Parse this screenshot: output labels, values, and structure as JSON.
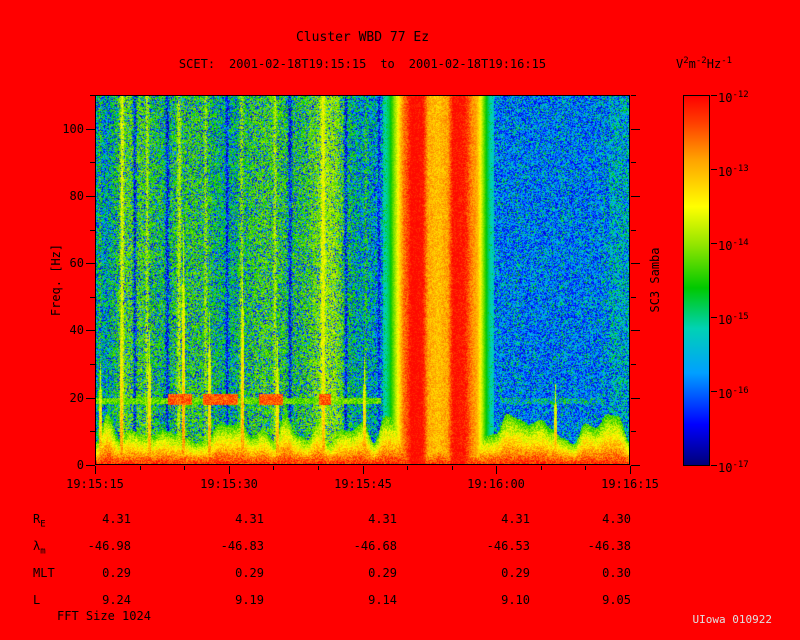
{
  "header": {
    "title": "Cluster WBD 77 Ez",
    "scet_label": "SCET:",
    "start_time": "2001-02-18T19:15:15",
    "to_label": "to",
    "end_time": "2001-02-18T19:16:15"
  },
  "axes": {
    "y_label": "Freq. [Hz]",
    "right_label": "SC3 Samba"
  },
  "colorbar": {
    "unit": {
      "base1": "V",
      "exp1": "2",
      "base2": "m",
      "exp2": "-2",
      "base3": "Hz",
      "exp3": "-1"
    },
    "ticks": [
      {
        "base": "10",
        "exp": "-12"
      },
      {
        "base": "10",
        "exp": "-13"
      },
      {
        "base": "10",
        "exp": "-14"
      },
      {
        "base": "10",
        "exp": "-15"
      },
      {
        "base": "10",
        "exp": "-16"
      },
      {
        "base": "10",
        "exp": "-17"
      }
    ]
  },
  "ephemeris": {
    "rows": [
      {
        "label": "R",
        "sub": "E",
        "values": [
          "4.31",
          "4.31",
          "4.31",
          "4.31",
          "4.30"
        ]
      },
      {
        "label": "λ",
        "sub": "m",
        "values": [
          "-46.98",
          "-46.83",
          "-46.68",
          "-46.53",
          "-46.38"
        ]
      },
      {
        "label": "MLT",
        "sub": "",
        "values": [
          "0.29",
          "0.29",
          "0.29",
          "0.29",
          "0.30"
        ]
      },
      {
        "label": "L",
        "sub": "",
        "values": [
          "9.24",
          "9.19",
          "9.14",
          "9.10",
          "9.05"
        ]
      }
    ]
  },
  "footer": {
    "fft_label": "FFT Size 1024",
    "credit": "UIowa 010922"
  },
  "chart_data": {
    "type": "heatmap",
    "title": "Cluster WBD 77 Ez",
    "xlabel": "",
    "ylabel": "Freq. [Hz]",
    "x_ticks": [
      "19:15:15",
      "19:15:30",
      "19:15:45",
      "19:16:00",
      "19:16:15"
    ],
    "x_range_seconds": [
      0,
      60
    ],
    "y_ticks_khz": [
      0,
      20,
      40,
      60,
      80,
      100
    ],
    "ylim_khz": [
      0,
      110
    ],
    "z_unit": "V^2 m^-2 Hz^-1",
    "z_range": [
      1e-17,
      1e-12
    ],
    "colorbar_exponents": [
      -12,
      -13,
      -14,
      -15,
      -16,
      -17
    ],
    "spacecraft": "SC3 Samba",
    "features": [
      {
        "name": "broadband-burst",
        "t_start_s": 34,
        "t_end_s": 43,
        "freq_khz": [
          0,
          110
        ],
        "level": "1e-13 to 1e-12, vertically striated, spans all frequencies"
      },
      {
        "name": "low-frequency-band",
        "t_start_s": 0,
        "t_end_s": 60,
        "freq_khz": [
          0,
          12
        ],
        "level": "~1e-13 orange/red band with ragged top and vertical spikes"
      },
      {
        "name": "narrowband-line-19khz",
        "t_start_s": 0,
        "t_end_s": 32,
        "freq_khz": [
          18,
          21
        ],
        "level": "~1e-14 line with 1e-12 red blobs"
      },
      {
        "name": "diffuse-green-turbulence",
        "t_start_s": 0,
        "t_end_s": 33,
        "freq_khz": [
          0,
          110
        ],
        "level": "~1e-15 speckled green with brighter vertical stripes"
      },
      {
        "name": "quiet-background",
        "t_start_s": 43,
        "t_end_s": 60,
        "freq_khz": [
          0,
          110
        ],
        "level": "1e-17 to 1e-16 blue speckle with faint green columns"
      }
    ]
  }
}
